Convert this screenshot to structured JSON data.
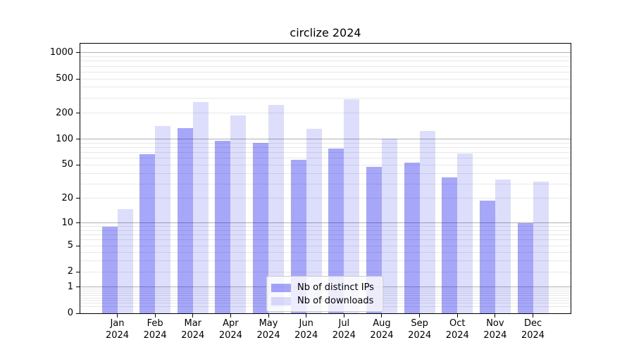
{
  "chart_data": {
    "type": "bar",
    "title": "circlize 2024",
    "categories": [
      "Jan 2024",
      "Feb 2024",
      "Mar 2024",
      "Apr 2024",
      "May 2024",
      "Jun 2024",
      "Jul 2024",
      "Aug 2024",
      "Sep 2024",
      "Oct 2024",
      "Nov 2024",
      "Dec 2024"
    ],
    "series": [
      {
        "name": "Nb of distinct IPs",
        "color": "#0000F058",
        "values": [
          9,
          67,
          135,
          96,
          90,
          58,
          78,
          48,
          53,
          36,
          19,
          10
        ]
      },
      {
        "name": "Nb of downloads",
        "color": "#0000E622",
        "values": [
          15,
          142,
          270,
          190,
          250,
          132,
          292,
          101,
          124,
          68,
          34,
          32
        ]
      }
    ],
    "yscale": "log1p",
    "ylim": [
      0,
      1275
    ],
    "yticks": [
      0,
      1,
      2,
      5,
      10,
      20,
      50,
      100,
      200,
      500,
      1000
    ],
    "grid": {
      "major_color": "#b0b0b0",
      "minor_color": "#e8e8e8",
      "major_values": [
        1,
        10,
        100,
        1000
      ]
    },
    "legend_position": "lower center, inside plot",
    "spine_color": "#000000"
  }
}
